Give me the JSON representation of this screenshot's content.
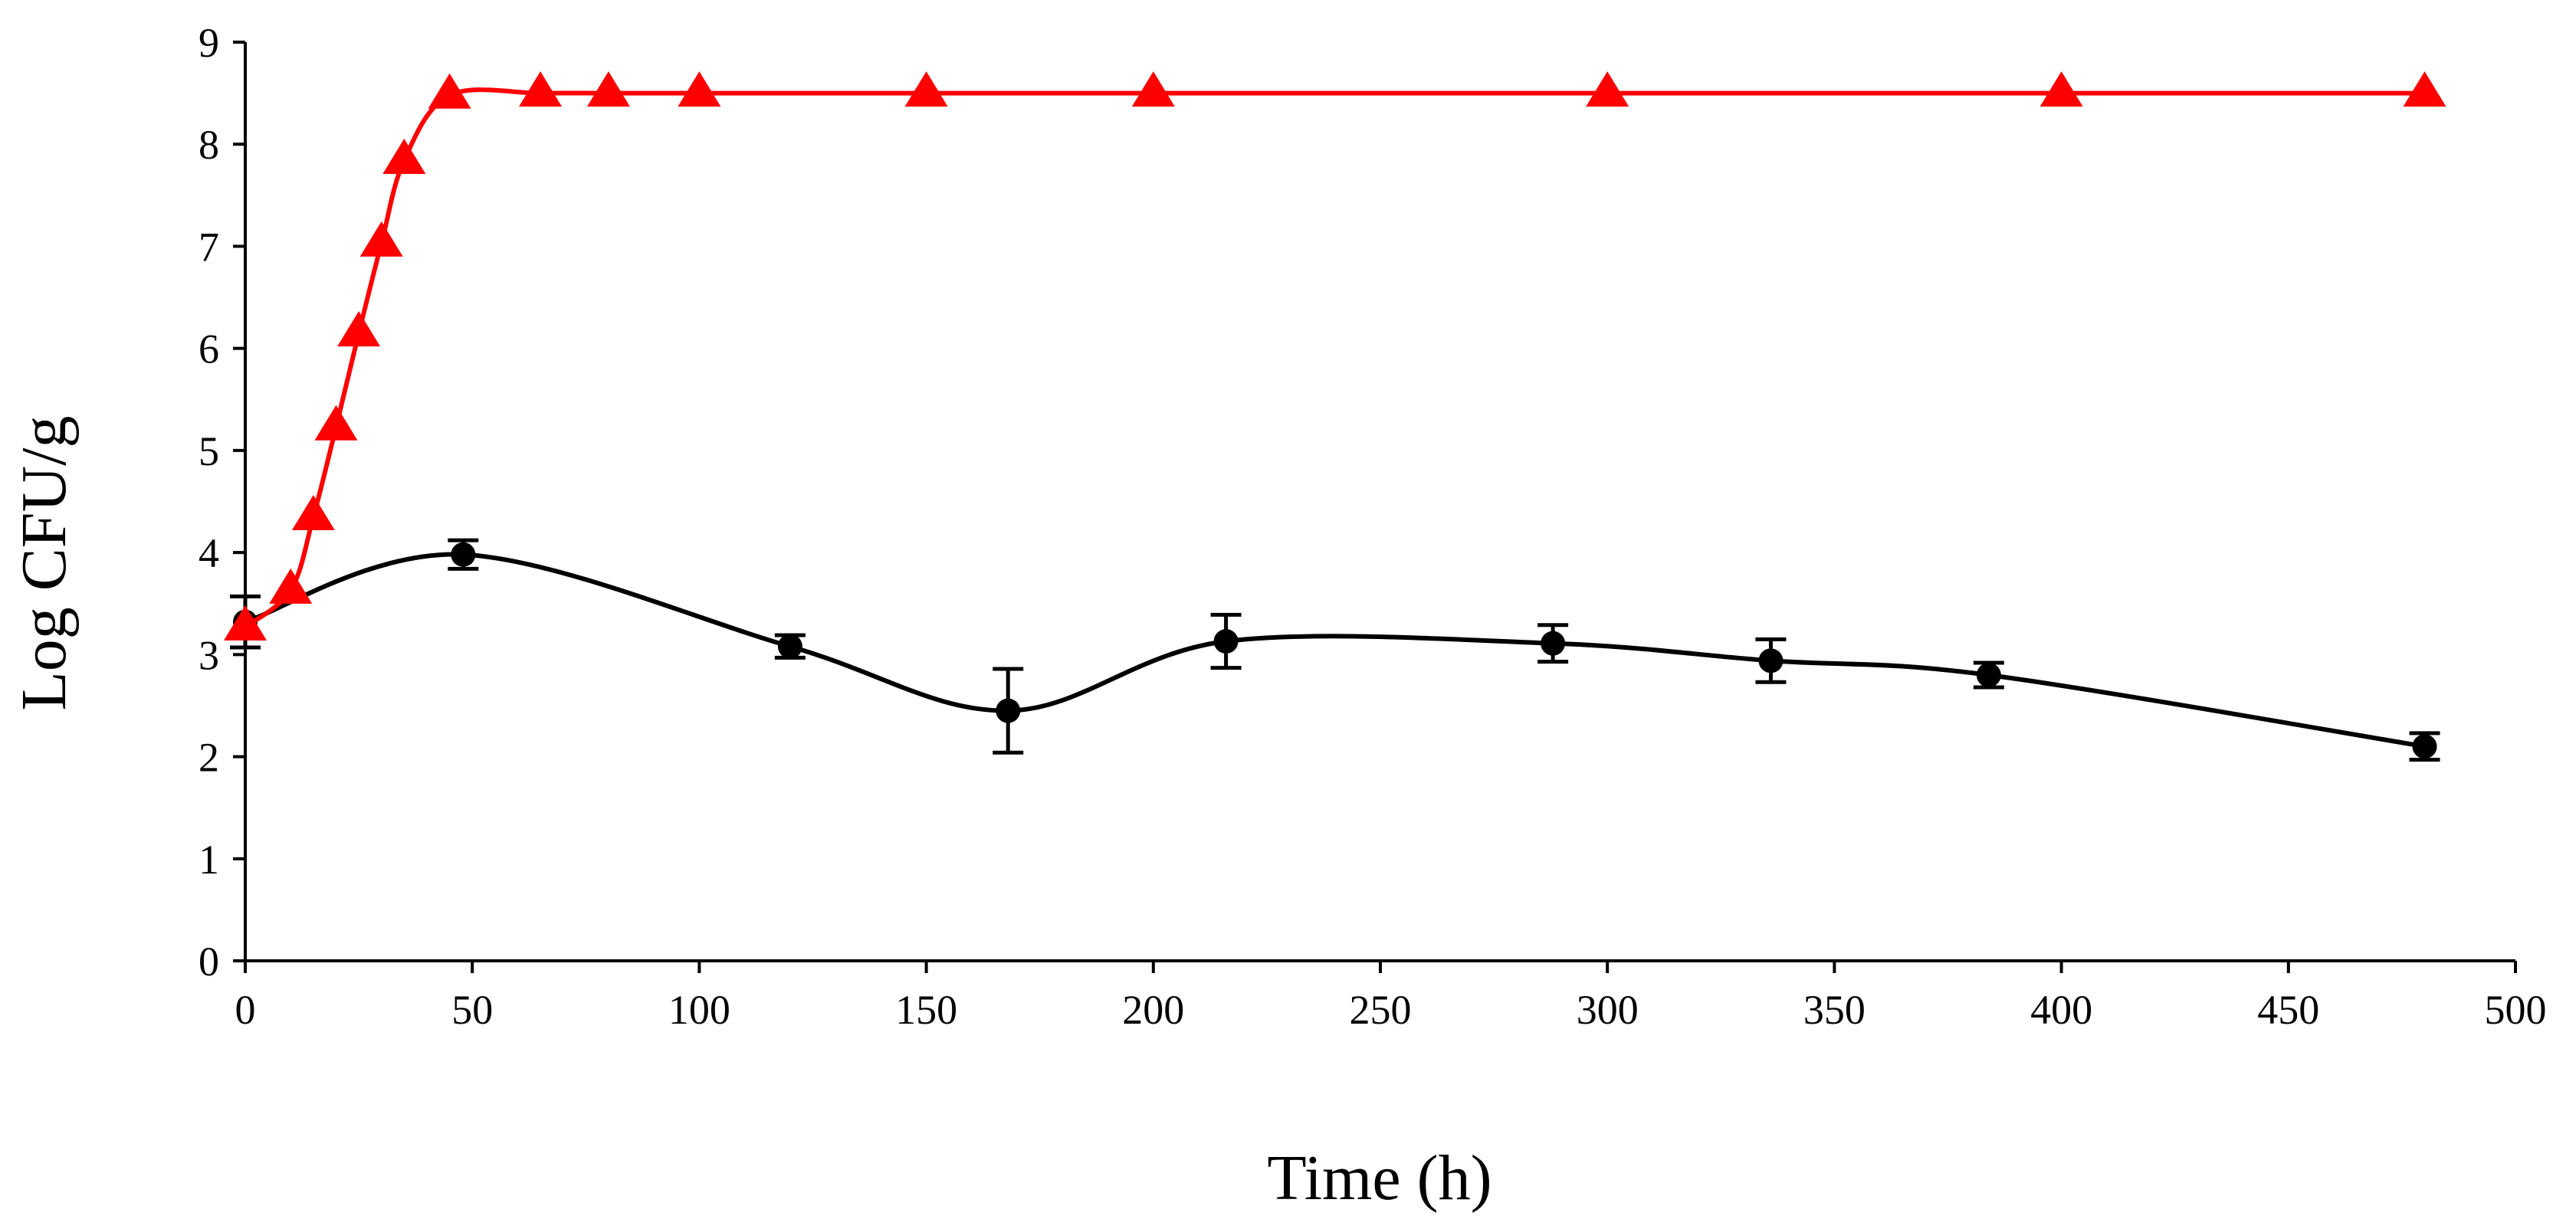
{
  "chart_data": {
    "type": "line",
    "title": "",
    "xlabel": "Time (h)",
    "ylabel": "Log CFU/g",
    "xlim": [
      0,
      500
    ],
    "ylim": [
      0,
      9
    ],
    "x_ticks": [
      0,
      50,
      100,
      150,
      200,
      250,
      300,
      350,
      400,
      450,
      500
    ],
    "y_ticks": [
      0,
      1,
      2,
      3,
      4,
      5,
      6,
      7,
      8,
      9
    ],
    "x_tick_labels": [
      "0",
      "50",
      "100",
      "150",
      "200",
      "250",
      "300",
      "350",
      "400",
      "450",
      "500"
    ],
    "y_tick_labels": [
      "0",
      "1",
      "2",
      "3",
      "4",
      "5",
      "6",
      "7",
      "8",
      "9"
    ],
    "grid": false,
    "legend": "none",
    "series": [
      {
        "name": "circles",
        "marker": "circle",
        "color": "#000000",
        "smooth": true,
        "points": [
          {
            "x": 0,
            "y": 3.32,
            "err": 0.25
          },
          {
            "x": 48,
            "y": 3.98,
            "err": 0.14
          },
          {
            "x": 120,
            "y": 3.08,
            "err": 0.11
          },
          {
            "x": 168,
            "y": 2.45,
            "err": 0.41
          },
          {
            "x": 216,
            "y": 3.13,
            "err": 0.26
          },
          {
            "x": 288,
            "y": 3.11,
            "err": 0.18
          },
          {
            "x": 336,
            "y": 2.94,
            "err": 0.21
          },
          {
            "x": 384,
            "y": 2.8,
            "err": 0.12
          },
          {
            "x": 480,
            "y": 2.1,
            "err": 0.13
          }
        ]
      },
      {
        "name": "triangles",
        "marker": "triangle",
        "color": "#ff0000",
        "smooth": true,
        "points": [
          {
            "x": 0,
            "y": 3.27
          },
          {
            "x": 10,
            "y": 3.63
          },
          {
            "x": 15,
            "y": 4.35
          },
          {
            "x": 20,
            "y": 5.23
          },
          {
            "x": 25,
            "y": 6.15
          },
          {
            "x": 30,
            "y": 7.03
          },
          {
            "x": 35,
            "y": 7.84
          },
          {
            "x": 45,
            "y": 8.48
          },
          {
            "x": 65,
            "y": 8.5
          },
          {
            "x": 80,
            "y": 8.5
          },
          {
            "x": 100,
            "y": 8.5
          },
          {
            "x": 150,
            "y": 8.5
          },
          {
            "x": 200,
            "y": 8.5
          },
          {
            "x": 300,
            "y": 8.5
          },
          {
            "x": 400,
            "y": 8.5
          },
          {
            "x": 480,
            "y": 8.5
          }
        ]
      }
    ]
  }
}
